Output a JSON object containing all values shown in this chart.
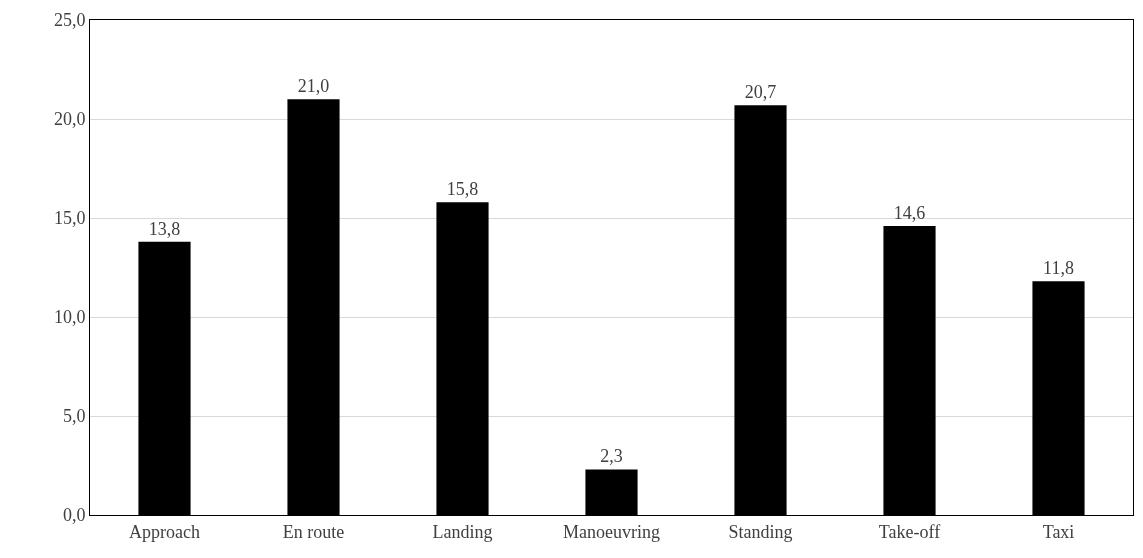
{
  "chart_data": {
    "type": "bar",
    "categories": [
      "Approach",
      "En route",
      "Landing",
      "Manoeuvring",
      "Standing",
      "Take-off",
      "Taxi"
    ],
    "values": [
      13.8,
      21.0,
      15.8,
      2.3,
      20.7,
      14.6,
      11.8
    ],
    "value_labels": [
      "13,8",
      "21,0",
      "15,8",
      "2,3",
      "20,7",
      "14,6",
      "11,8"
    ],
    "color": "#000000",
    "ylim": [
      0,
      25
    ],
    "yticks": [
      {
        "value": 0,
        "label": "0,0"
      },
      {
        "value": 5,
        "label": "5,0"
      },
      {
        "value": 10,
        "label": "10,0"
      },
      {
        "value": 15,
        "label": "15,0"
      },
      {
        "value": 20,
        "label": "20,0"
      },
      {
        "value": 25,
        "label": "25,0"
      }
    ],
    "grid": "y"
  }
}
